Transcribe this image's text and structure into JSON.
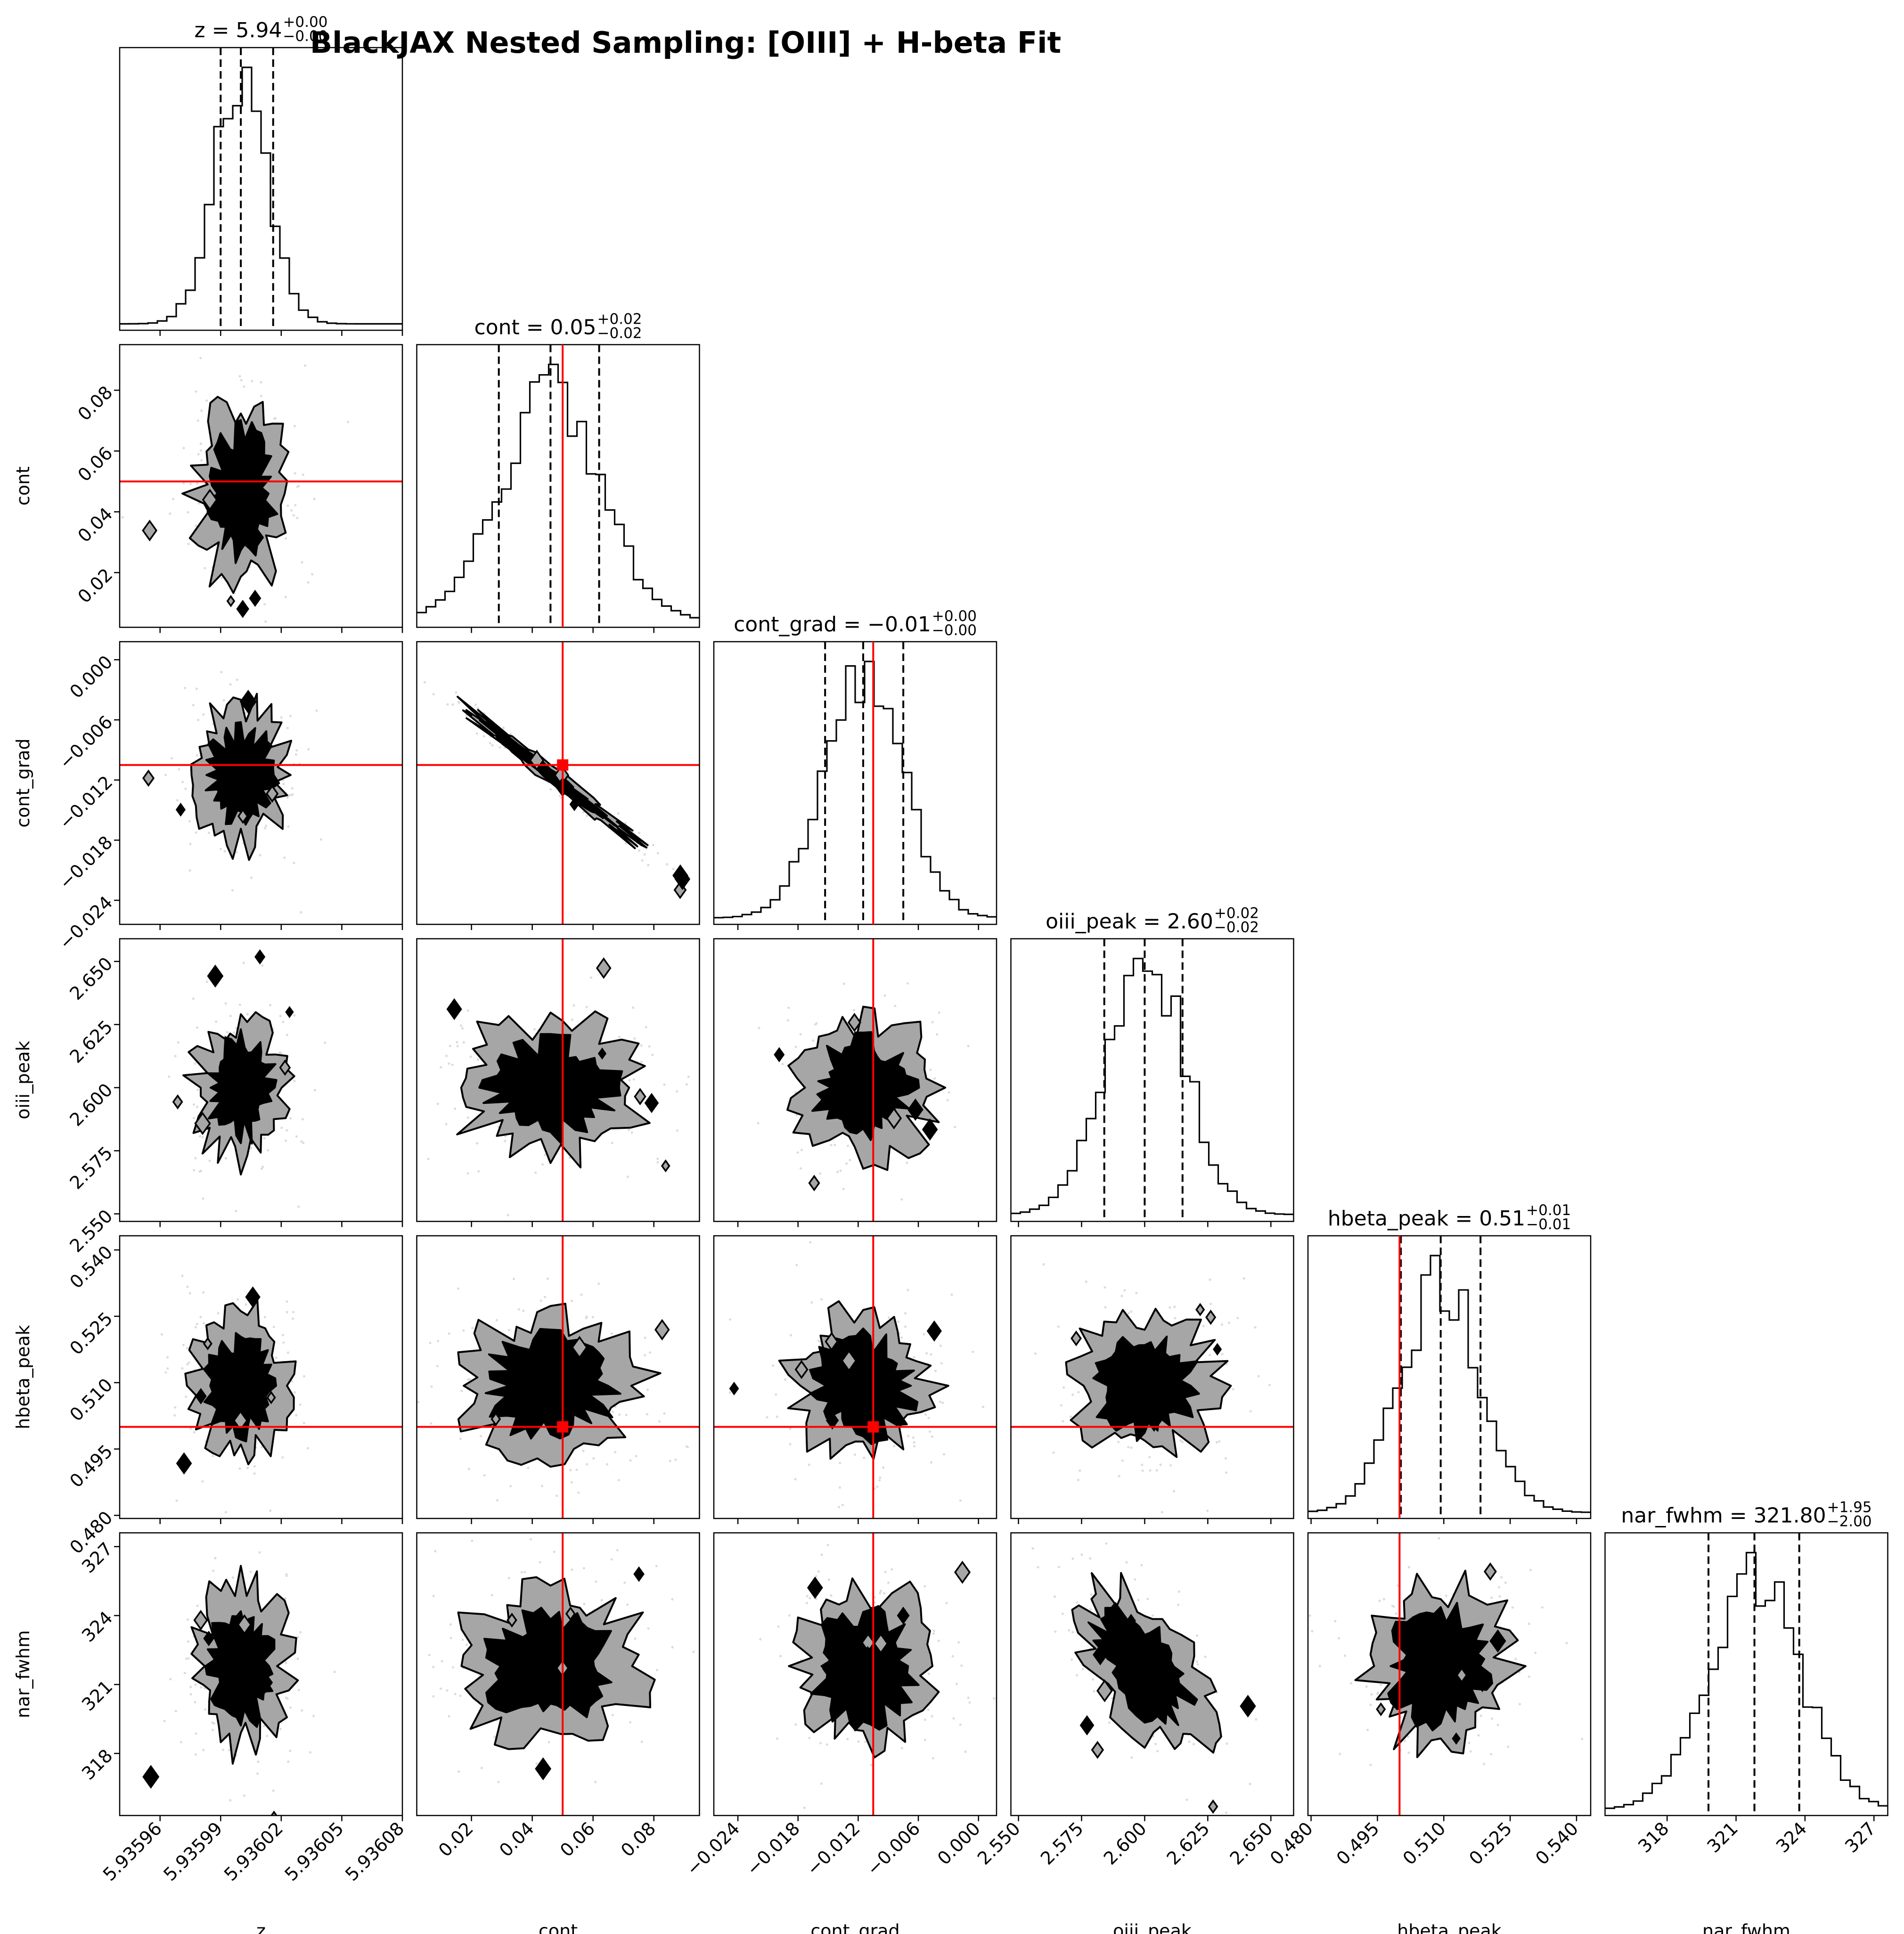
{
  "figure": {
    "title": "BlackJAX Nested Sampling: [OIII] + H-beta Fit"
  },
  "chart_data": {
    "type": "corner",
    "parameters": [
      {
        "name": "z",
        "median": 5.936,
        "q16": 5.93599,
        "q84": 5.936016,
        "range": [
          5.93594,
          5.93608
        ],
        "ticks": [
          5.93596,
          5.93599,
          5.93602,
          5.93605,
          5.93608
        ],
        "tick_labels": [
          "5.93596",
          "5.93599",
          "5.93602",
          "5.93605",
          "5.93608"
        ],
        "title": {
          "main": "z = 5.94",
          "sup": "+0.00",
          "sub": "−0.00"
        },
        "truth": null
      },
      {
        "name": "cont",
        "median": 0.046,
        "q16": 0.029,
        "q84": 0.062,
        "range": [
          0.002,
          0.095
        ],
        "ticks": [
          0.02,
          0.04,
          0.06,
          0.08
        ],
        "tick_labels": [
          "0.02",
          "0.04",
          "0.06",
          "0.08"
        ],
        "title": {
          "main": "cont = 0.05",
          "sup": "+0.02",
          "sub": "−0.02"
        },
        "truth": 0.05
      },
      {
        "name": "cont_grad",
        "median": -0.0115,
        "q16": -0.0153,
        "q84": -0.0075,
        "range": [
          -0.0264,
          0.0018
        ],
        "ticks": [
          -0.024,
          -0.018,
          -0.012,
          -0.006,
          0.0
        ],
        "tick_labels": [
          "−0.024",
          "−0.018",
          "−0.012",
          "−0.006",
          "0.000"
        ],
        "title": {
          "main": "cont_grad = −0.01",
          "sup": "+0.00",
          "sub": "−0.00"
        },
        "truth": -0.0105
      },
      {
        "name": "oiii_peak",
        "median": 2.6,
        "q16": 2.584,
        "q84": 2.615,
        "range": [
          2.547,
          2.659
        ],
        "ticks": [
          2.55,
          2.575,
          2.6,
          2.625,
          2.65
        ],
        "tick_labels": [
          "2.550",
          "2.575",
          "2.600",
          "2.625",
          "2.650"
        ],
        "title": {
          "main": "oiii_peak = 2.60",
          "sup": "+0.02",
          "sub": "−0.02"
        },
        "truth": null
      },
      {
        "name": "hbeta_peak",
        "median": 0.5093,
        "q16": 0.5003,
        "q84": 0.5183,
        "range": [
          0.4793,
          0.5432
        ],
        "ticks": [
          0.48,
          0.495,
          0.51,
          0.525,
          0.54
        ],
        "tick_labels": [
          "0.480",
          "0.495",
          "0.510",
          "0.525",
          "0.540"
        ],
        "title": {
          "main": "hbeta_peak = 0.51",
          "sup": "+0.01",
          "sub": "−0.01"
        },
        "truth": 0.5
      },
      {
        "name": "nar_fwhm",
        "median": 321.8,
        "q16": 319.8,
        "q84": 323.75,
        "range": [
          315.3,
          327.6
        ],
        "ticks": [
          318,
          321,
          324,
          327
        ],
        "tick_labels": [
          "318",
          "321",
          "324",
          "327"
        ],
        "title": {
          "main": "nar_fwhm = 321.80",
          "sup": "+1.95",
          "sub": "−2.00"
        },
        "truth": null
      }
    ],
    "correlations": {
      "cont|cont_grad": -0.99,
      "oiii_peak|nar_fwhm": -0.55
    },
    "colors": {
      "histogram": "#000000",
      "contour_outer": "#a6a6a6",
      "contour_inner": "#000000",
      "truth": "#ff0000",
      "samples": "#dcdcdc"
    },
    "quantile_lines": "dashed",
    "n_hist_bins": 30
  }
}
